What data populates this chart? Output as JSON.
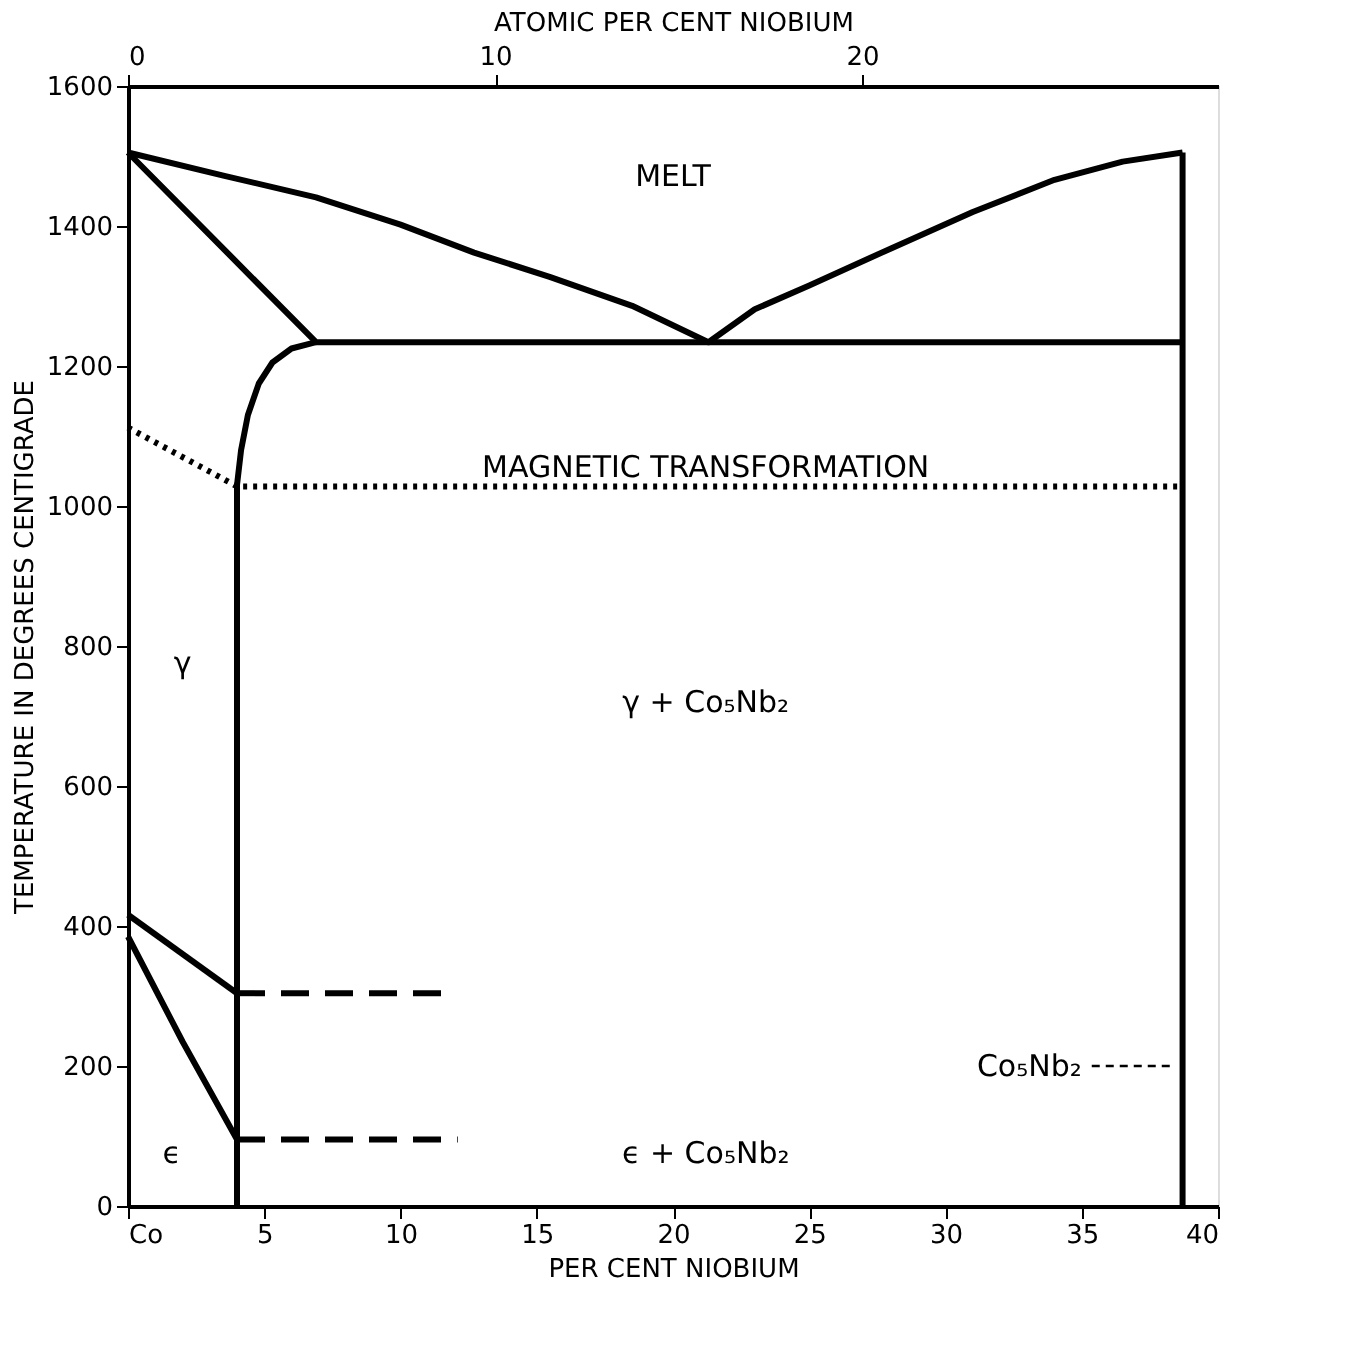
{
  "chart_data": {
    "type": "line",
    "xlabel": "PER CENT NIOBIUM",
    "ylabel": "TEMPERATURE IN DEGREES CENTIGRADE",
    "x2label": "ATOMIC PER CENT NIOBIUM",
    "xlim": [
      0,
      40
    ],
    "xticks": [
      {
        "value": 0,
        "label": "Co"
      },
      5,
      10,
      15,
      20,
      25,
      30,
      35,
      40
    ],
    "ylim": [
      0,
      1600
    ],
    "yticks": [
      0,
      200,
      400,
      600,
      800,
      {
        "value": 1000,
        "label": "1000"
      },
      {
        "value": 1200,
        "label": "1200"
      },
      {
        "value": 1400,
        "label": "1400"
      },
      {
        "value": 1600,
        "label": "1600"
      }
    ],
    "x2lim": [
      0,
      29.7
    ],
    "x2ticks": [
      0,
      10,
      20
    ],
    "grid": false,
    "legend": false,
    "marker": "none",
    "series": [
      {
        "color": "#000000",
        "line_style": "solid",
        "x": [
          0,
          3.5,
          6.9,
          10,
          12.7,
          15.5,
          18.5,
          21.3,
          23,
          25,
          28,
          31,
          34,
          36.5,
          38.7
        ],
        "values": [
          1505,
          1472,
          1441,
          1402,
          1362,
          1327,
          1286,
          1234,
          1281,
          1315,
          1368,
          1420,
          1466,
          1492,
          1505
        ]
      },
      {
        "color": "#000000",
        "line_style": "solid",
        "x": [
          38.7,
          38.7
        ],
        "values": [
          1505,
          0
        ]
      },
      {
        "color": "#000000",
        "line_style": "solid",
        "x": [
          0,
          6.9,
          38.7
        ],
        "values": [
          1505,
          1234,
          1234
        ]
      },
      {
        "color": "#000000",
        "line_style": "solid",
        "x": [
          6.9,
          6.0,
          5.3,
          4.8,
          4.4,
          4.15,
          4.0,
          4.0
        ],
        "values": [
          1234,
          1225,
          1205,
          1175,
          1130,
          1080,
          1030,
          0
        ]
      },
      {
        "color": "#000000",
        "line_style": "dotted",
        "x": [
          0,
          4.0,
          38.7
        ],
        "values": [
          1112,
          1028,
          1028
        ]
      },
      {
        "color": "#000000",
        "line_style": "solid",
        "x": [
          0,
          4.0
        ],
        "values": [
          416,
          304
        ]
      },
      {
        "color": "#000000",
        "line_style": "dashed",
        "x": [
          4.0,
          11.7
        ],
        "values": [
          304,
          304
        ]
      },
      {
        "color": "#000000",
        "line_style": "solid",
        "x": [
          0,
          1,
          2,
          3,
          4.0
        ],
        "values": [
          385,
          310,
          235,
          165,
          95
        ]
      },
      {
        "color": "#000000",
        "line_style": "dashed",
        "x": [
          4.0,
          12.1
        ],
        "values": [
          95,
          95
        ]
      }
    ],
    "annotations": [
      "MELT",
      "MAGNETIC TRANSFORMATION",
      "γ",
      "γ + Co₅Nb₂",
      "ϵ",
      "ϵ + Co₅Nb₂",
      "Co₅Nb₂"
    ]
  }
}
